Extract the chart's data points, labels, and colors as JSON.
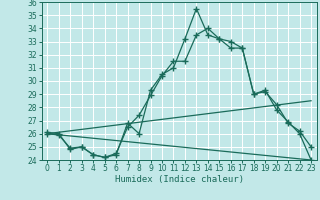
{
  "xlabel": "Humidex (Indice chaleur)",
  "bg_color": "#c2e8e8",
  "grid_color": "#ffffff",
  "line_color": "#1a6b5a",
  "xlim": [
    -0.5,
    23.5
  ],
  "ylim": [
    24,
    36
  ],
  "xticks": [
    0,
    1,
    2,
    3,
    4,
    5,
    6,
    7,
    8,
    9,
    10,
    11,
    12,
    13,
    14,
    15,
    16,
    17,
    18,
    19,
    20,
    21,
    22,
    23
  ],
  "yticks": [
    24,
    25,
    26,
    27,
    28,
    29,
    30,
    31,
    32,
    33,
    34,
    35,
    36
  ],
  "series1_x": [
    0,
    1,
    2,
    3,
    4,
    5,
    6,
    7,
    8,
    9,
    10,
    11,
    12,
    13,
    14,
    15,
    16,
    17,
    18,
    19,
    20,
    21,
    22,
    23
  ],
  "series1_y": [
    26.1,
    26.0,
    24.8,
    25.0,
    24.4,
    24.2,
    24.4,
    26.8,
    26.0,
    29.3,
    30.5,
    31.0,
    33.2,
    35.5,
    33.5,
    33.2,
    32.5,
    32.5,
    29.0,
    29.2,
    28.2,
    26.8,
    26.2,
    25.0
  ],
  "series2_x": [
    0,
    1,
    2,
    3,
    4,
    5,
    6,
    7,
    8,
    9,
    10,
    11,
    12,
    13,
    14,
    15,
    16,
    17,
    18,
    19,
    20,
    21,
    22,
    23
  ],
  "series2_y": [
    26.0,
    25.9,
    24.9,
    25.0,
    24.4,
    24.2,
    24.5,
    26.5,
    27.4,
    28.9,
    30.4,
    31.5,
    31.5,
    33.5,
    34.0,
    33.2,
    33.0,
    32.5,
    29.0,
    29.3,
    27.8,
    26.9,
    26.0,
    24.0
  ],
  "series3_x": [
    0,
    23
  ],
  "series3_y": [
    26.0,
    28.5
  ],
  "series4_x": [
    0,
    23
  ],
  "series4_y": [
    26.0,
    24.0
  ],
  "marker": "+",
  "marker_size": 4,
  "markeredgewidth": 1.0,
  "linewidth": 0.9,
  "tick_fontsize": 5.5,
  "xlabel_fontsize": 6.5
}
